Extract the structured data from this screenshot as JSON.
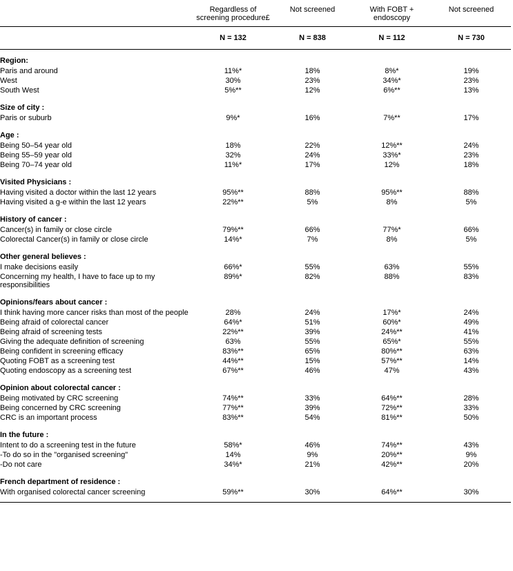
{
  "columns": {
    "top": [
      "Regardless of screening procedure£",
      "Not screened",
      "With FOBT + endoscopy",
      "Not screened"
    ],
    "n": [
      "N = 132",
      "N = 838",
      "N = 112",
      "N = 730"
    ]
  },
  "sections": [
    {
      "title": "Region:",
      "rows": [
        {
          "label": "Paris and around",
          "v": [
            "11%*",
            "18%",
            "8%*",
            "19%"
          ]
        },
        {
          "label": "West",
          "v": [
            "30%",
            "23%",
            "34%*",
            "23%"
          ]
        },
        {
          "label": "South West",
          "v": [
            "5%**",
            "12%",
            "6%**",
            "13%"
          ]
        }
      ]
    },
    {
      "title": "Size of city :",
      "rows": [
        {
          "label": "Paris or suburb",
          "v": [
            "9%*",
            "16%",
            "7%**",
            "17%"
          ]
        }
      ]
    },
    {
      "title": "Age :",
      "rows": [
        {
          "label": "Being 50–54 year old",
          "v": [
            "18%",
            "22%",
            "12%**",
            "24%"
          ]
        },
        {
          "label": "Being 55–59 year old",
          "v": [
            "32%",
            "24%",
            "33%*",
            "23%"
          ]
        },
        {
          "label": "Being 70–74 year old",
          "v": [
            "11%*",
            "17%",
            "12%",
            "18%"
          ]
        }
      ]
    },
    {
      "title": "Visited Physicians :",
      "rows": [
        {
          "label": "Having visited a doctor within the last 12 years",
          "v": [
            "95%**",
            "88%",
            "95%**",
            "88%"
          ]
        },
        {
          "label": "Having visited a g-e within the last 12 years",
          "v": [
            "22%**",
            "5%",
            "8%",
            "5%"
          ]
        }
      ]
    },
    {
      "title": "History of cancer :",
      "rows": [
        {
          "label": "Cancer(s) in family or close circle",
          "v": [
            "79%**",
            "66%",
            "77%*",
            "66%"
          ]
        },
        {
          "label": "Colorectal Cancer(s) in family or close circle",
          "v": [
            "14%*",
            "7%",
            "8%",
            "5%"
          ]
        }
      ]
    },
    {
      "title": "Other general believes :",
      "rows": [
        {
          "label": "I make decisions easily",
          "v": [
            "66%*",
            "55%",
            "63%",
            "55%"
          ]
        },
        {
          "label": "Concerning my health, I have to face up to my responsibilities",
          "v": [
            "89%*",
            "82%",
            "88%",
            "83%"
          ]
        }
      ]
    },
    {
      "title": "Opinions/fears about cancer :",
      "rows": [
        {
          "label": "I think having more cancer risks than most of the people",
          "v": [
            "28%",
            "24%",
            "17%*",
            "24%"
          ]
        },
        {
          "label": "Being afraid of colorectal cancer",
          "v": [
            "64%*",
            "51%",
            "60%*",
            "49%"
          ]
        },
        {
          "label": "Being afraid of screening tests",
          "v": [
            "22%**",
            "39%",
            "24%**",
            "41%"
          ]
        },
        {
          "label": "Giving the adequate definition of screening",
          "v": [
            "63%",
            "55%",
            "65%*",
            "55%"
          ]
        },
        {
          "label": "Being confident in screening efficacy",
          "v": [
            "83%**",
            "65%",
            "80%**",
            "63%"
          ]
        },
        {
          "label": "Quoting FOBT as a screening test",
          "v": [
            "44%**",
            "15%",
            "57%**",
            "14%"
          ]
        },
        {
          "label": "Quoting endoscopy as a screening test",
          "v": [
            "67%**",
            "46%",
            "47%",
            "43%"
          ]
        }
      ]
    },
    {
      "title": "Opinion about colorectal cancer :",
      "rows": [
        {
          "label": "Being motivated by CRC screening",
          "v": [
            "74%**",
            "33%",
            "64%**",
            "28%"
          ]
        },
        {
          "label": "Being concerned by CRC screening",
          "v": [
            "77%**",
            "39%",
            "72%**",
            "33%"
          ]
        },
        {
          "label": "CRC is an important process",
          "v": [
            "83%**",
            "54%",
            "81%**",
            "50%"
          ]
        }
      ]
    },
    {
      "title": "In the future :",
      "rows": [
        {
          "label": "Intent to do a screening test in the future",
          "v": [
            "58%*",
            "46%",
            "74%**",
            "43%"
          ]
        },
        {
          "label": "-To do so in the \"organised screening\"",
          "v": [
            "14%",
            "9%",
            "20%**",
            "9%"
          ]
        },
        {
          "label": "-Do not care",
          "v": [
            "34%*",
            "21%",
            "42%**",
            "20%"
          ]
        }
      ]
    },
    {
      "title": "French department of residence :",
      "rows": [
        {
          "label": "With organised colorectal cancer screening",
          "v": [
            "59%**",
            "30%",
            "64%**",
            "30%"
          ]
        }
      ]
    }
  ]
}
